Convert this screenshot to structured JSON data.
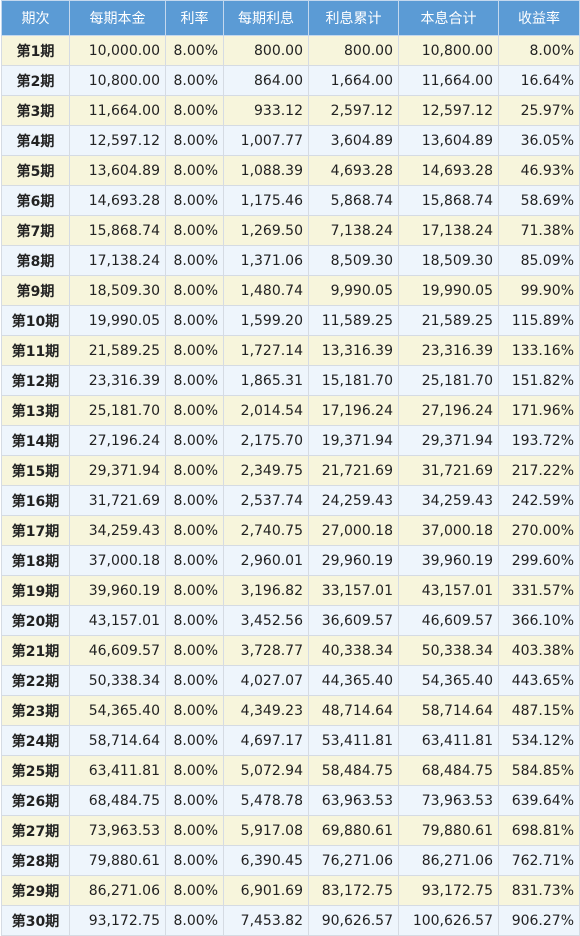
{
  "headers": [
    "期次",
    "每期本金",
    "利率",
    "每期利息",
    "利息累计",
    "本息合计",
    "收益率"
  ],
  "rows": [
    [
      "第1期",
      "10,000.00",
      "8.00%",
      "800.00",
      "800.00",
      "10,800.00",
      "8.00%"
    ],
    [
      "第2期",
      "10,800.00",
      "8.00%",
      "864.00",
      "1,664.00",
      "11,664.00",
      "16.64%"
    ],
    [
      "第3期",
      "11,664.00",
      "8.00%",
      "933.12",
      "2,597.12",
      "12,597.12",
      "25.97%"
    ],
    [
      "第4期",
      "12,597.12",
      "8.00%",
      "1,007.77",
      "3,604.89",
      "13,604.89",
      "36.05%"
    ],
    [
      "第5期",
      "13,604.89",
      "8.00%",
      "1,088.39",
      "4,693.28",
      "14,693.28",
      "46.93%"
    ],
    [
      "第6期",
      "14,693.28",
      "8.00%",
      "1,175.46",
      "5,868.74",
      "15,868.74",
      "58.69%"
    ],
    [
      "第7期",
      "15,868.74",
      "8.00%",
      "1,269.50",
      "7,138.24",
      "17,138.24",
      "71.38%"
    ],
    [
      "第8期",
      "17,138.24",
      "8.00%",
      "1,371.06",
      "8,509.30",
      "18,509.30",
      "85.09%"
    ],
    [
      "第9期",
      "18,509.30",
      "8.00%",
      "1,480.74",
      "9,990.05",
      "19,990.05",
      "99.90%"
    ],
    [
      "第10期",
      "19,990.05",
      "8.00%",
      "1,599.20",
      "11,589.25",
      "21,589.25",
      "115.89%"
    ],
    [
      "第11期",
      "21,589.25",
      "8.00%",
      "1,727.14",
      "13,316.39",
      "23,316.39",
      "133.16%"
    ],
    [
      "第12期",
      "23,316.39",
      "8.00%",
      "1,865.31",
      "15,181.70",
      "25,181.70",
      "151.82%"
    ],
    [
      "第13期",
      "25,181.70",
      "8.00%",
      "2,014.54",
      "17,196.24",
      "27,196.24",
      "171.96%"
    ],
    [
      "第14期",
      "27,196.24",
      "8.00%",
      "2,175.70",
      "19,371.94",
      "29,371.94",
      "193.72%"
    ],
    [
      "第15期",
      "29,371.94",
      "8.00%",
      "2,349.75",
      "21,721.69",
      "31,721.69",
      "217.22%"
    ],
    [
      "第16期",
      "31,721.69",
      "8.00%",
      "2,537.74",
      "24,259.43",
      "34,259.43",
      "242.59%"
    ],
    [
      "第17期",
      "34,259.43",
      "8.00%",
      "2,740.75",
      "27,000.18",
      "37,000.18",
      "270.00%"
    ],
    [
      "第18期",
      "37,000.18",
      "8.00%",
      "2,960.01",
      "29,960.19",
      "39,960.19",
      "299.60%"
    ],
    [
      "第19期",
      "39,960.19",
      "8.00%",
      "3,196.82",
      "33,157.01",
      "43,157.01",
      "331.57%"
    ],
    [
      "第20期",
      "43,157.01",
      "8.00%",
      "3,452.56",
      "36,609.57",
      "46,609.57",
      "366.10%"
    ],
    [
      "第21期",
      "46,609.57",
      "8.00%",
      "3,728.77",
      "40,338.34",
      "50,338.34",
      "403.38%"
    ],
    [
      "第22期",
      "50,338.34",
      "8.00%",
      "4,027.07",
      "44,365.40",
      "54,365.40",
      "443.65%"
    ],
    [
      "第23期",
      "54,365.40",
      "8.00%",
      "4,349.23",
      "48,714.64",
      "58,714.64",
      "487.15%"
    ],
    [
      "第24期",
      "58,714.64",
      "8.00%",
      "4,697.17",
      "53,411.81",
      "63,411.81",
      "534.12%"
    ],
    [
      "第25期",
      "63,411.81",
      "8.00%",
      "5,072.94",
      "58,484.75",
      "68,484.75",
      "584.85%"
    ],
    [
      "第26期",
      "68,484.75",
      "8.00%",
      "5,478.78",
      "63,963.53",
      "73,963.53",
      "639.64%"
    ],
    [
      "第27期",
      "73,963.53",
      "8.00%",
      "5,917.08",
      "69,880.61",
      "79,880.61",
      "698.81%"
    ],
    [
      "第28期",
      "79,880.61",
      "8.00%",
      "6,390.45",
      "76,271.06",
      "86,271.06",
      "762.71%"
    ],
    [
      "第29期",
      "86,271.06",
      "8.00%",
      "6,901.69",
      "83,172.75",
      "93,172.75",
      "831.73%"
    ],
    [
      "第30期",
      "93,172.75",
      "8.00%",
      "7,453.82",
      "90,626.57",
      "100,626.57",
      "906.27%"
    ]
  ],
  "colors": {
    "header_bg": "#5b9bd5",
    "header_text": "#ffffff",
    "row_odd_bg": "#f7f5dc",
    "row_even_bg": "#eef5fc",
    "border": "#d5dbe3"
  }
}
